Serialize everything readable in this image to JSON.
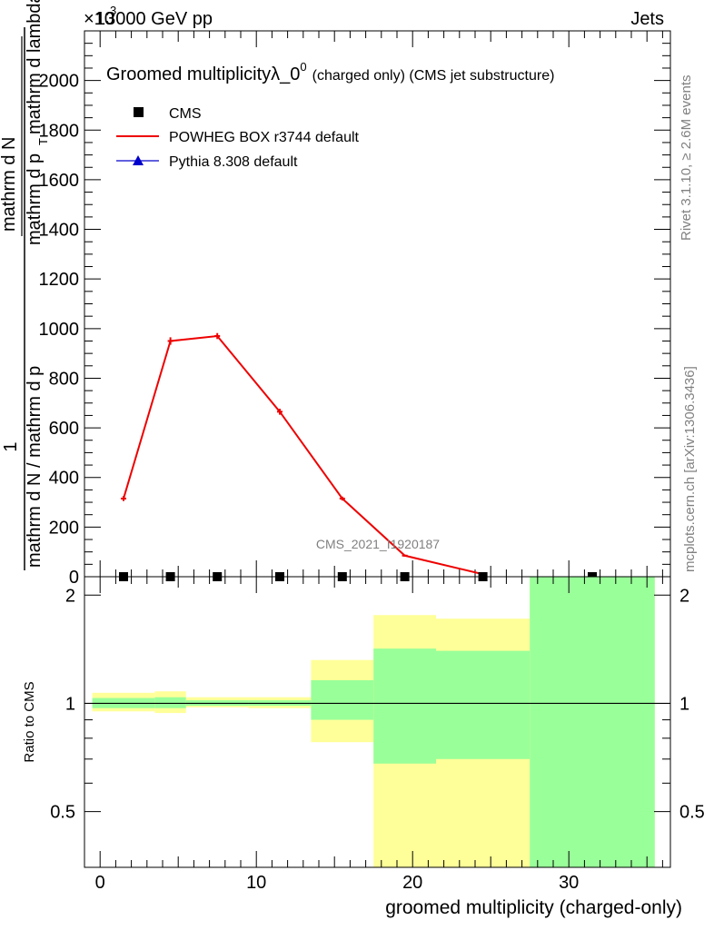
{
  "header": {
    "energy_label": "13000 GeV pp",
    "scale_label": "×10",
    "scale_exp": "3",
    "process_label": "Jets"
  },
  "side_labels": {
    "rivet": "Rivet 3.1.10, ≥ 2.6M events",
    "mcplots": "mcplots.cern.ch [arXiv:1306.3436]"
  },
  "watermark": "CMS_2021_I1920187",
  "chart_data": [
    {
      "type": "line",
      "title": "Groomed multiplicityλ_0",
      "title_sup": "0",
      "title_suffix": "(charged only) (CMS jet substructure)",
      "xlabel": "groomed multiplicity (charged-only)",
      "ylabel_num": "1",
      "ylabel_den": "mathrm d N / mathrm d p",
      "ylabel_den_sub": "T",
      "ylabel_right": "mathrm d N",
      "ylabel_right_den": "mathrm d p",
      "ylabel_right_den_sub": "T",
      "ylabel_right_den2": "mathrm d lambda",
      "xlim": [
        -1,
        36.5
      ],
      "ylim": [
        0,
        2200
      ],
      "x_ticks": [
        0,
        10,
        20,
        30
      ],
      "y_ticks": [
        0,
        200,
        400,
        600,
        800,
        1000,
        1200,
        1400,
        1600,
        1800,
        2000
      ],
      "legend_position": "top-left",
      "series": [
        {
          "name": "CMS",
          "color": "#000000",
          "marker": "square",
          "x": [
            1.5,
            4.5,
            7.5,
            11.5,
            15.5,
            19.5,
            24.5,
            31.5
          ],
          "y": [
            0,
            0,
            0,
            0,
            0,
            0,
            0,
            0
          ]
        },
        {
          "name": "POWHEG BOX r3744 default",
          "color": "#ee0000",
          "marker": "line",
          "x": [
            1.5,
            4.5,
            7.5,
            11.5,
            15.5,
            19.5,
            24.5
          ],
          "y": [
            315,
            950,
            970,
            665,
            315,
            85,
            10
          ],
          "err": [
            10,
            15,
            12,
            12,
            8,
            4,
            2
          ]
        },
        {
          "name": "Pythia 8.308 default",
          "color": "#0000cc",
          "marker": "triangle",
          "x": [],
          "y": []
        }
      ]
    },
    {
      "type": "area",
      "ylabel": "Ratio to CMS",
      "xlim": [
        -1,
        36.5
      ],
      "ylim": [
        0.35,
        2.25
      ],
      "y_ticks": [
        0.5,
        1,
        2
      ],
      "bins": [
        {
          "lo": -0.5,
          "hi": 3.5,
          "stat": [
            0.97,
            1.035
          ],
          "syst": [
            0.95,
            1.07
          ]
        },
        {
          "lo": 3.5,
          "hi": 5.5,
          "stat": [
            0.97,
            1.04
          ],
          "syst": [
            0.94,
            1.08
          ]
        },
        {
          "lo": 5.5,
          "hi": 9.5,
          "stat": [
            0.985,
            1.02
          ],
          "syst": [
            0.975,
            1.04
          ]
        },
        {
          "lo": 9.5,
          "hi": 13.5,
          "stat": [
            0.985,
            1.02
          ],
          "syst": [
            0.97,
            1.04
          ]
        },
        {
          "lo": 13.5,
          "hi": 17.5,
          "stat": [
            0.9,
            1.16
          ],
          "syst": [
            0.78,
            1.32
          ]
        },
        {
          "lo": 17.5,
          "hi": 21.5,
          "stat": [
            0.68,
            1.42
          ],
          "syst": [
            0.35,
            1.76
          ]
        },
        {
          "lo": 21.5,
          "hi": 27.5,
          "stat": [
            0.7,
            1.4
          ],
          "syst": [
            0.35,
            1.72
          ]
        },
        {
          "lo": 27.5,
          "hi": 35.5,
          "stat": [
            0.35,
            2.25
          ],
          "syst": [
            0.35,
            2.25
          ]
        }
      ],
      "stat_color": "#99ff99",
      "syst_color": "#ffff99"
    }
  ]
}
